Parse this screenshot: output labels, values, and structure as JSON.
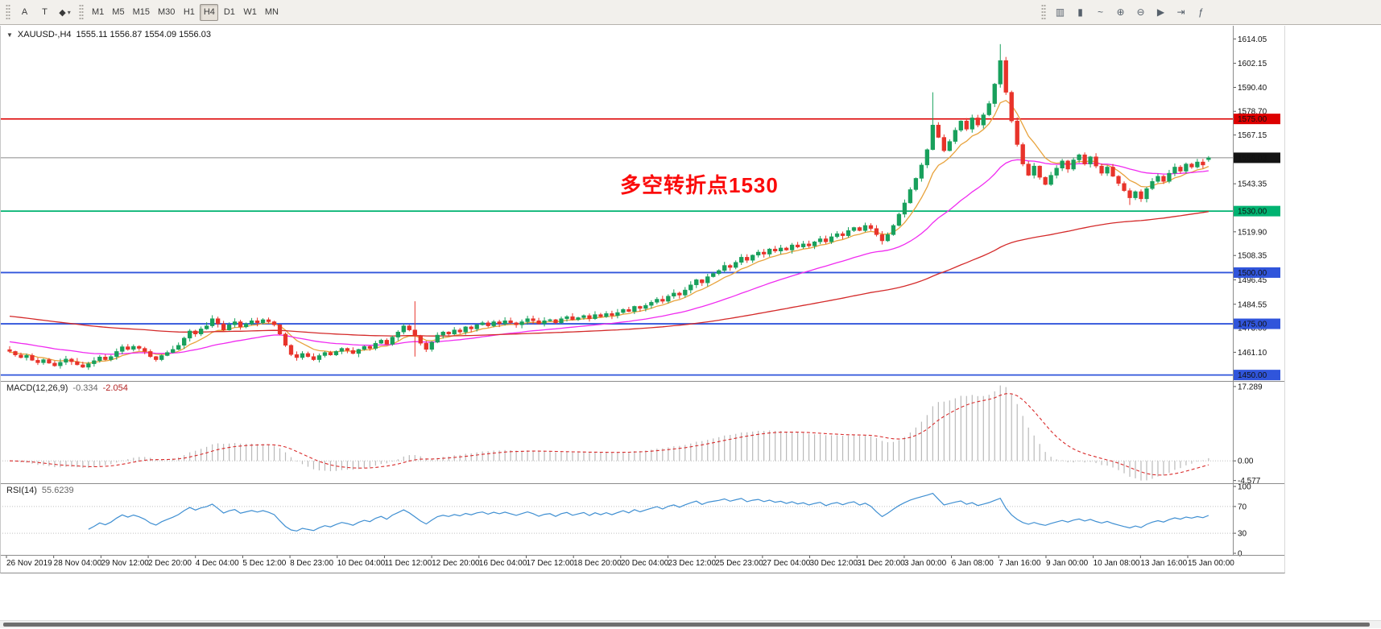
{
  "toolbar": {
    "tools": [
      {
        "name": "insert-text",
        "glyph": "A"
      },
      {
        "name": "insert-label",
        "glyph": "T"
      },
      {
        "name": "insert-shapes",
        "glyph": "◆",
        "caret": "▾"
      }
    ],
    "timeframes": [
      "M1",
      "M5",
      "M15",
      "M30",
      "H1",
      "H4",
      "D1",
      "W1",
      "MN"
    ],
    "active_timeframe": "H4",
    "chart_icons": [
      {
        "name": "chart-bars",
        "glyph": "▥"
      },
      {
        "name": "chart-candles",
        "glyph": "▮"
      },
      {
        "name": "chart-line",
        "glyph": "~"
      },
      {
        "name": "zoom-in",
        "glyph": "⊕"
      },
      {
        "name": "zoom-out",
        "glyph": "⊖"
      },
      {
        "name": "auto-scroll",
        "glyph": "▶"
      },
      {
        "name": "chart-shift",
        "glyph": "⇥"
      },
      {
        "name": "indicators",
        "glyph": "ƒ"
      }
    ]
  },
  "chart": {
    "expander_icon": "▼",
    "symbol_period": "XAUUSD-,H4",
    "ohlc": "1555.11 1556.87 1554.09 1556.03",
    "annotation": {
      "text": "多空转折点1530",
      "color": "#fb0a0a"
    },
    "price_axis": {
      "ticks": [
        "1614.05",
        "1602.15",
        "1590.40",
        "1578.70",
        "1567.15",
        "1543.35",
        "1519.90",
        "1508.35",
        "1496.45",
        "1484.55",
        "1473.00",
        "1461.10"
      ]
    },
    "badges": [
      {
        "label": "1575.00",
        "price": 1575.0,
        "bg": "#dd0000"
      },
      {
        "label": "1556.03",
        "price": 1556.03,
        "bg": "#141414"
      },
      {
        "label": "1530.00",
        "price": 1530.0,
        "bg": "#00b371"
      },
      {
        "label": "1500.00",
        "price": 1500.0,
        "bg": "#3055db"
      },
      {
        "label": "1475.00",
        "price": 1475.0,
        "bg": "#3055db"
      },
      {
        "label": "1450.00",
        "price": 1450.0,
        "bg": "#3055db"
      }
    ],
    "time_axis": {
      "labels": [
        "26 Nov 2019",
        "28 Nov 04:00",
        "29 Nov 12:00",
        "2 Dec 20:00",
        "4 Dec 04:00",
        "5 Dec 12:00",
        "8 Dec 23:00",
        "10 Dec 04:00",
        "11 Dec 12:00",
        "12 Dec 20:00",
        "16 Dec 04:00",
        "17 Dec 12:00",
        "18 Dec 20:00",
        "20 Dec 04:00",
        "23 Dec 12:00",
        "25 Dec 23:00",
        "27 Dec 04:00",
        "30 Dec 12:00",
        "31 Dec 20:00",
        "3 Jan 00:00",
        "6 Jan 08:00",
        "7 Jan 16:00",
        "9 Jan 00:00",
        "10 Jan 08:00",
        "13 Jan 16:00",
        "15 Jan 00:00"
      ]
    },
    "ma_settings": [
      {
        "name": "ma-fast",
        "period": 8,
        "color": "#e8a33d",
        "seed": 1461.0
      },
      {
        "name": "ma-medium",
        "period": 34,
        "color": "#f02bf0",
        "seed": 1466.5
      },
      {
        "name": "ma-slow",
        "period": 120,
        "color": "#d42a2a",
        "seed": 1479.0
      }
    ],
    "colors": {
      "up": "#18a05c",
      "down": "#e8332a",
      "current_price_line": "#8a8a8a",
      "separator": "#8c8c8c"
    }
  },
  "macd": {
    "title": "MACD(12,26,9)",
    "value_main": "-0.334",
    "value_signal": "-2.054",
    "scale": [
      {
        "label": "17.289",
        "value": 17.289
      },
      {
        "label": "0.00",
        "value": 0
      },
      {
        "label": "-4.577",
        "value": -4.577
      }
    ],
    "histogram_color": "#b9b9b9",
    "signal_color": "#d92b2b"
  },
  "rsi": {
    "title": "RSI(14)",
    "value": "55.6239",
    "scale": [
      {
        "label": "100",
        "value": 100
      },
      {
        "label": "70",
        "value": 70
      },
      {
        "label": "30",
        "value": 30
      },
      {
        "label": "0",
        "value": 0
      }
    ],
    "levels": [
      70,
      30
    ],
    "line_color": "#3f8fd2"
  },
  "chart_data": {
    "type": "candlestick",
    "symbol": "XAUUSD-",
    "timeframe": "H4",
    "title": "XAUUSD-,H4",
    "ylim": [
      1447.5,
      1618.5
    ],
    "current_price": 1556.03,
    "last_ohlc": {
      "open": 1555.11,
      "high": 1556.87,
      "low": 1554.09,
      "close": 1556.03
    },
    "levels": [
      {
        "price": 1575.0,
        "color": "#dd0000",
        "width": 1.6
      },
      {
        "price": 1530.0,
        "color": "#00b371",
        "width": 1.8
      },
      {
        "price": 1500.0,
        "color": "#3055db",
        "width": 1.8
      },
      {
        "price": 1475.0,
        "color": "#3055db",
        "width": 1.8
      },
      {
        "price": 1450.0,
        "color": "#3055db",
        "width": 1.8
      }
    ],
    "annotation": "多空转折点1530",
    "closes": [
      1461.5,
      1459.8,
      1458.5,
      1459.6,
      1457.2,
      1456.0,
      1457.5,
      1455.8,
      1454.5,
      1456.2,
      1457.8,
      1456.5,
      1455.0,
      1453.8,
      1455.5,
      1457.0,
      1458.8,
      1457.5,
      1459.0,
      1461.5,
      1463.8,
      1462.5,
      1464.0,
      1463.0,
      1461.5,
      1459.0,
      1457.5,
      1459.5,
      1461.0,
      1462.5,
      1464.5,
      1468.0,
      1471.5,
      1470.0,
      1472.5,
      1474.0,
      1477.5,
      1475.0,
      1472.0,
      1474.5,
      1476.0,
      1473.5,
      1475.0,
      1476.5,
      1475.5,
      1477.0,
      1476.0,
      1474.5,
      1470.0,
      1464.5,
      1460.0,
      1458.5,
      1460.5,
      1459.0,
      1457.5,
      1459.5,
      1461.0,
      1459.8,
      1461.5,
      1463.0,
      1462.0,
      1460.5,
      1462.5,
      1464.0,
      1463.0,
      1465.5,
      1467.0,
      1465.0,
      1468.5,
      1471.0,
      1474.0,
      1472.0,
      1469.0,
      1465.5,
      1462.5,
      1466.0,
      1469.5,
      1471.0,
      1470.0,
      1472.0,
      1471.0,
      1473.5,
      1472.5,
      1474.5,
      1475.5,
      1474.0,
      1476.0,
      1475.0,
      1476.5,
      1475.5,
      1474.5,
      1476.0,
      1477.5,
      1476.5,
      1475.0,
      1476.5,
      1477.0,
      1475.5,
      1477.5,
      1478.5,
      1477.0,
      1478.0,
      1479.0,
      1477.5,
      1479.5,
      1478.5,
      1480.0,
      1479.0,
      1480.5,
      1482.0,
      1481.0,
      1483.5,
      1482.5,
      1484.0,
      1485.5,
      1487.0,
      1486.0,
      1488.5,
      1490.0,
      1489.0,
      1491.5,
      1494.0,
      1496.5,
      1495.0,
      1498.0,
      1499.5,
      1501.0,
      1503.5,
      1502.5,
      1505.0,
      1507.5,
      1506.0,
      1508.5,
      1510.0,
      1509.0,
      1511.5,
      1510.5,
      1512.0,
      1511.0,
      1513.5,
      1512.5,
      1514.0,
      1513.0,
      1515.0,
      1516.5,
      1515.0,
      1517.5,
      1519.0,
      1518.0,
      1520.5,
      1522.0,
      1520.5,
      1523.0,
      1521.5,
      1518.5,
      1515.5,
      1518.5,
      1523.0,
      1528.5,
      1534.0,
      1540.5,
      1546.0,
      1552.5,
      1560.0,
      1572.0,
      1566.0,
      1559.5,
      1564.0,
      1569.5,
      1574.0,
      1570.0,
      1575.5,
      1572.0,
      1577.0,
      1582.5,
      1592.0,
      1603.5,
      1588.0,
      1574.0,
      1562.5,
      1553.0,
      1547.5,
      1552.0,
      1546.5,
      1543.0,
      1547.5,
      1551.0,
      1554.5,
      1550.5,
      1555.0,
      1557.5,
      1553.0,
      1556.5,
      1552.0,
      1548.5,
      1551.5,
      1547.0,
      1543.5,
      1540.0,
      1536.5,
      1539.5,
      1536.0,
      1541.0,
      1544.5,
      1547.0,
      1544.5,
      1548.5,
      1551.5,
      1549.5,
      1553.0,
      1551.5,
      1554.0,
      1552.5,
      1556.03
    ],
    "open_overrides": {
      "213": 1555.11
    },
    "high_overrides": {
      "72": 1486.0,
      "164": 1588.0,
      "176": 1611.5,
      "213": 1556.87
    },
    "low_overrides": {
      "72": 1459.0,
      "199": 1533.0,
      "213": 1554.09
    },
    "indicators": {
      "macd": {
        "fast": 12,
        "slow": 26,
        "signal": 9,
        "current_macd": -0.334,
        "current_signal": -2.054,
        "range": [
          -5.2,
          18.4
        ]
      },
      "rsi": {
        "period": 14,
        "current": 55.6239,
        "range": [
          0,
          100
        ],
        "levels": [
          70,
          30
        ]
      }
    }
  }
}
